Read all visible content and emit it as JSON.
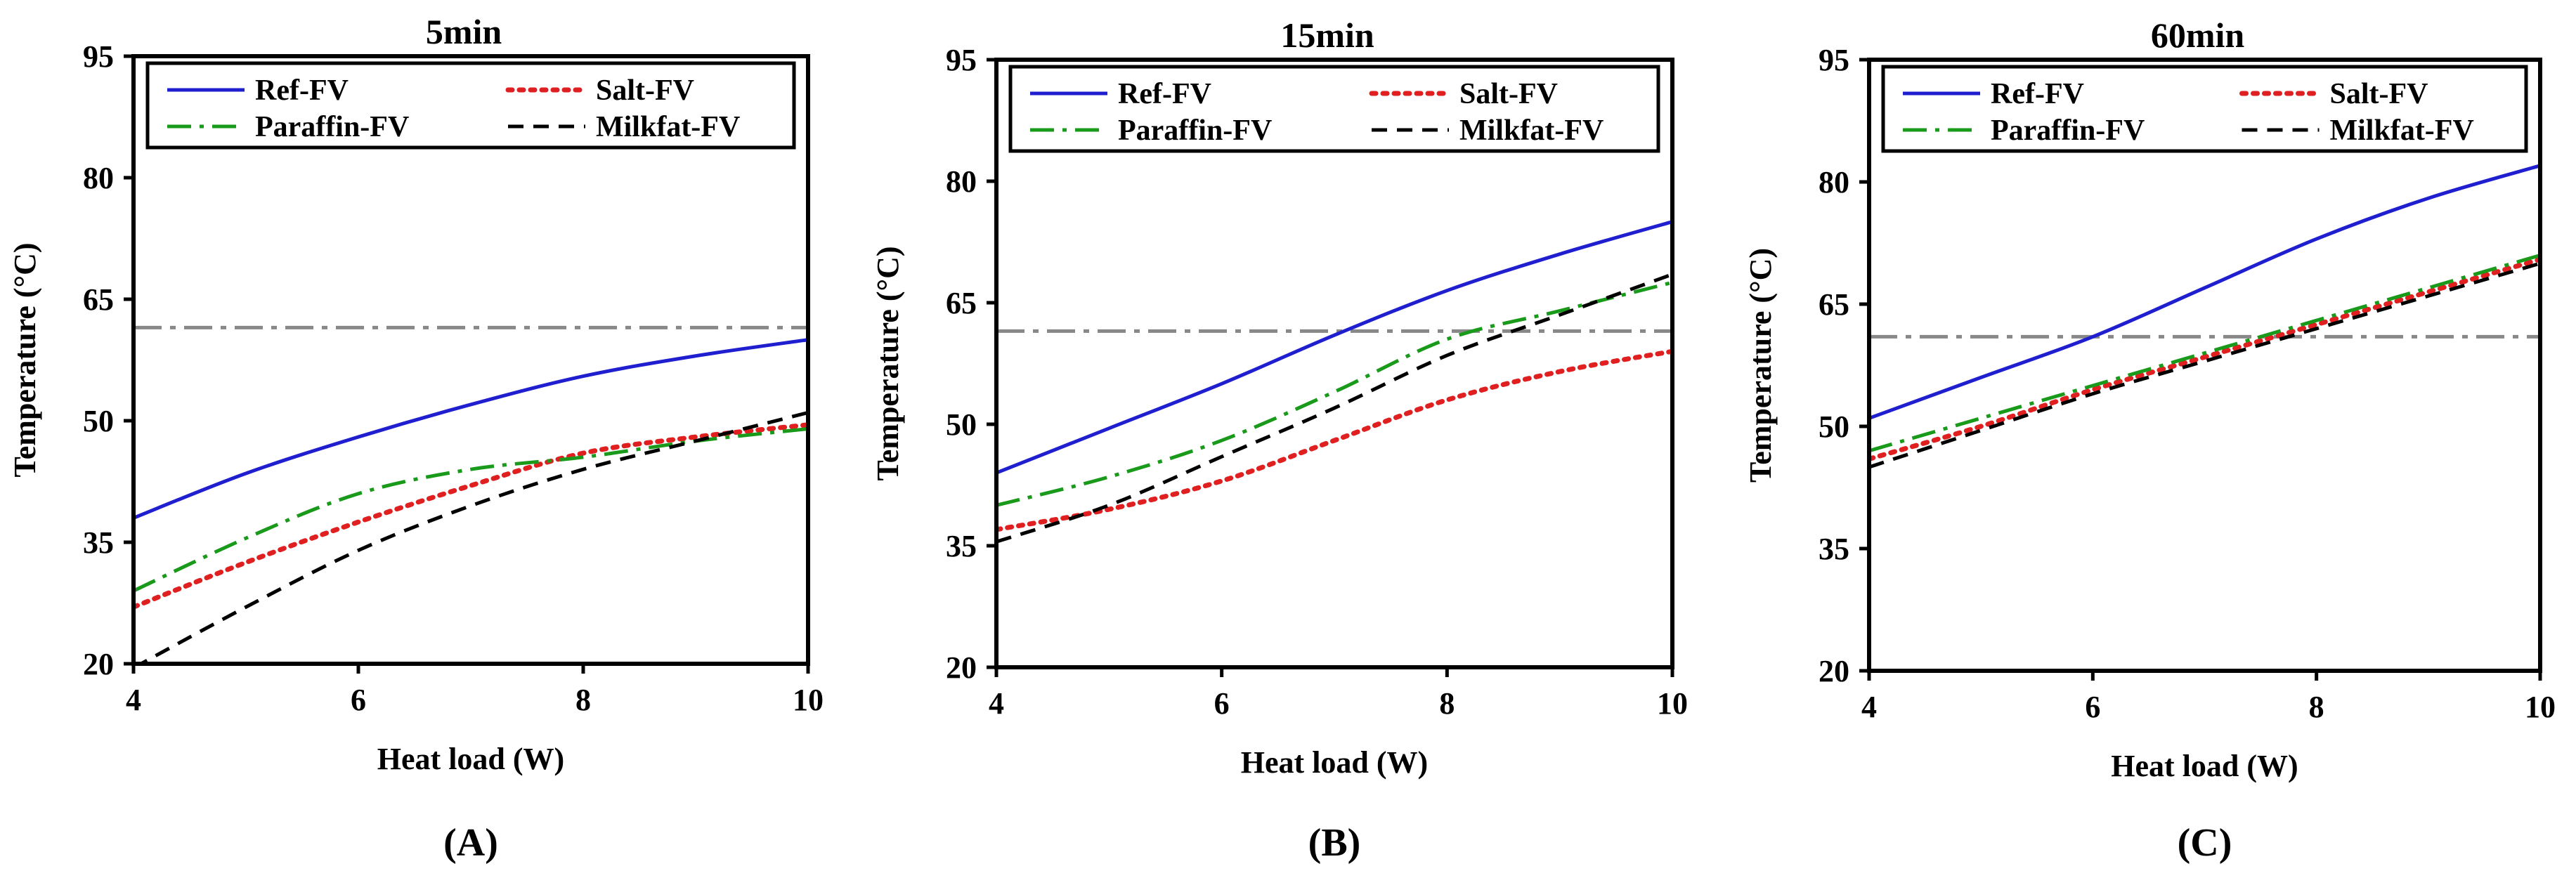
{
  "chart_data": [
    {
      "type": "line",
      "title": "5min",
      "panel_label": "(A)",
      "xlabel": "Heat load (W)",
      "ylabel": "Temperature (°C)",
      "xlim": [
        4,
        10
      ],
      "ylim": [
        20,
        95
      ],
      "xticks": [
        4,
        6,
        8,
        10
      ],
      "yticks": [
        20,
        35,
        50,
        65,
        80,
        95
      ],
      "reference_line": {
        "y": 61.5,
        "color": "#888888",
        "style": "dash-dot"
      },
      "series": [
        {
          "name": "Ref-FV",
          "color": "#1f1fd0",
          "style": "solid",
          "x": [
            4,
            5,
            6,
            7,
            8,
            9,
            10
          ],
          "y": [
            38,
            43.5,
            48,
            52,
            55.5,
            58,
            60
          ]
        },
        {
          "name": "Salt-FV",
          "color": "#e02020",
          "style": "dotted",
          "x": [
            4,
            5,
            6,
            7,
            8,
            9,
            10
          ],
          "y": [
            27,
            32.5,
            37.5,
            42,
            46,
            48,
            49.5
          ]
        },
        {
          "name": "Paraffin-FV",
          "color": "#1a9a1a",
          "style": "dash-dot",
          "x": [
            4,
            5,
            6,
            7,
            8,
            9,
            10
          ],
          "y": [
            29,
            35.5,
            41,
            44,
            45.5,
            47.5,
            49
          ]
        },
        {
          "name": "Milkfat-FV",
          "color": "#000000",
          "style": "dashed",
          "x": [
            4,
            5,
            6,
            7,
            8,
            9,
            10
          ],
          "y": [
            19.5,
            27,
            34,
            39.5,
            44,
            47.5,
            51
          ]
        }
      ]
    },
    {
      "type": "line",
      "title": "15min",
      "panel_label": "(B)",
      "xlabel": "Heat load (W)",
      "ylabel": "Temperature (°C)",
      "xlim": [
        4,
        10
      ],
      "ylim": [
        20,
        95
      ],
      "xticks": [
        4,
        6,
        8,
        10
      ],
      "yticks": [
        20,
        35,
        50,
        65,
        80,
        95
      ],
      "reference_line": {
        "y": 61.5,
        "color": "#888888",
        "style": "dash-dot"
      },
      "series": [
        {
          "name": "Ref-FV",
          "color": "#1f1fd0",
          "style": "solid",
          "x": [
            4,
            5,
            6,
            7,
            8,
            9,
            10
          ],
          "y": [
            44,
            49.5,
            55,
            61,
            66.5,
            71,
            75
          ]
        },
        {
          "name": "Salt-FV",
          "color": "#e02020",
          "style": "dotted",
          "x": [
            4,
            5,
            6,
            7,
            8,
            9,
            10
          ],
          "y": [
            37,
            39.5,
            43,
            48,
            53,
            56.5,
            59
          ]
        },
        {
          "name": "Paraffin-FV",
          "color": "#1a9a1a",
          "style": "dash-dot",
          "x": [
            4,
            5,
            6,
            7,
            8,
            9,
            10
          ],
          "y": [
            40,
            43.5,
            48,
            54,
            60.5,
            64,
            67.5
          ]
        },
        {
          "name": "Milkfat-FV",
          "color": "#000000",
          "style": "dashed",
          "x": [
            4,
            5,
            6,
            7,
            8,
            9,
            10
          ],
          "y": [
            35.5,
            40,
            46,
            52,
            58.5,
            63.5,
            68.5
          ]
        }
      ]
    },
    {
      "type": "line",
      "title": "60min",
      "panel_label": "(C)",
      "xlabel": "Heat load (W)",
      "ylabel": "Temperature (°C)",
      "xlim": [
        4,
        10
      ],
      "ylim": [
        20,
        95
      ],
      "xticks": [
        4,
        6,
        8,
        10
      ],
      "yticks": [
        20,
        35,
        50,
        65,
        80,
        95
      ],
      "reference_line": {
        "y": 61,
        "color": "#888888",
        "style": "dash-dot"
      },
      "series": [
        {
          "name": "Ref-FV",
          "color": "#1f1fd0",
          "style": "solid",
          "x": [
            4,
            5,
            6,
            7,
            8,
            9,
            10
          ],
          "y": [
            51,
            56,
            61,
            67,
            73,
            78,
            82
          ]
        },
        {
          "name": "Salt-FV",
          "color": "#e02020",
          "style": "dotted",
          "x": [
            4,
            5,
            6,
            7,
            8,
            9,
            10
          ],
          "y": [
            46,
            50,
            54.5,
            58.5,
            62.5,
            66.5,
            70.5
          ]
        },
        {
          "name": "Paraffin-FV",
          "color": "#1a9a1a",
          "style": "dash-dot",
          "x": [
            4,
            5,
            6,
            7,
            8,
            9,
            10
          ],
          "y": [
            47,
            51,
            55,
            59,
            63,
            67,
            71
          ]
        },
        {
          "name": "Milkfat-FV",
          "color": "#000000",
          "style": "dashed",
          "x": [
            4,
            5,
            6,
            7,
            8,
            9,
            10
          ],
          "y": [
            45,
            49.5,
            54,
            58,
            62,
            66,
            70
          ]
        }
      ]
    }
  ]
}
